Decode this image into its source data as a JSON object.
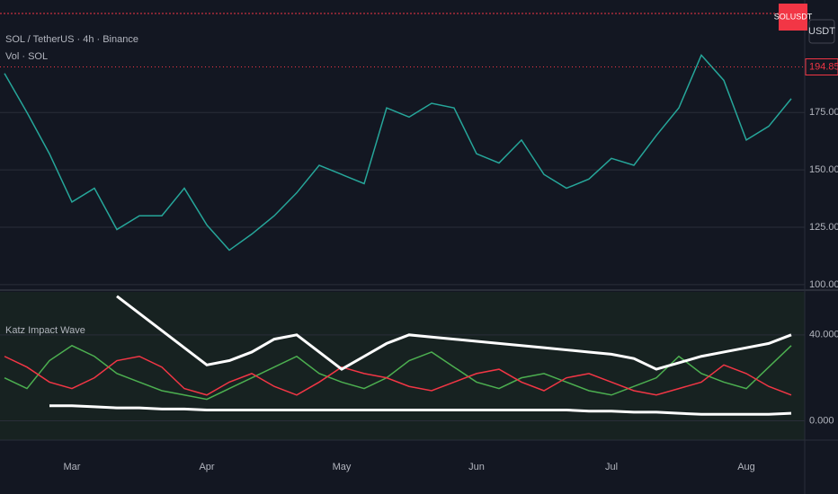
{
  "chart_data": [
    {
      "type": "line",
      "title": "SOL / TetherUS · 4h · Binance",
      "subtitle": "Vol · SOL",
      "symbol": "SOLUSDT",
      "currency": "USDT",
      "last_price": 194.85,
      "last_price_label": "194.85",
      "categories": [
        null,
        null,
        null,
        "Mar",
        null,
        null,
        null,
        null,
        null,
        "Apr",
        null,
        null,
        null,
        null,
        null,
        "May",
        null,
        null,
        null,
        null,
        null,
        "Jun",
        null,
        null,
        null,
        null,
        null,
        "Jul",
        null,
        null,
        null,
        null,
        null,
        "Aug",
        null,
        null
      ],
      "series": [
        {
          "color": "#26a69a",
          "values": [
            192,
            175,
            157,
            136,
            142,
            124,
            130,
            130,
            142,
            126,
            115,
            122,
            130,
            140,
            152,
            148,
            144,
            177,
            173,
            179,
            177,
            157,
            153,
            163,
            148,
            142,
            146,
            155,
            152,
            165,
            177,
            200,
            189,
            163,
            169,
            181
          ]
        }
      ],
      "ylim": [
        98,
        224
      ],
      "yticks": [
        {
          "value": 100,
          "label": "100.00"
        },
        {
          "value": 125,
          "label": "125.00"
        },
        {
          "value": 150,
          "label": "150.00"
        },
        {
          "value": 175,
          "label": "175.00"
        }
      ],
      "grid": true
    },
    {
      "type": "line",
      "title": "Katz Impact Wave",
      "series": [
        {
          "color": "#4caf50",
          "values": [
            20,
            15,
            28,
            35,
            30,
            22,
            18,
            14,
            12,
            10,
            15,
            20,
            25,
            30,
            22,
            18,
            15,
            20,
            28,
            32,
            25,
            18,
            15,
            20,
            22,
            18,
            14,
            12,
            16,
            20,
            30,
            22,
            18,
            15,
            25,
            35
          ]
        },
        {
          "color": "#f23645",
          "values": [
            30,
            25,
            18,
            15,
            20,
            28,
            30,
            25,
            15,
            12,
            18,
            22,
            16,
            12,
            18,
            25,
            22,
            20,
            16,
            14,
            18,
            22,
            24,
            18,
            14,
            20,
            22,
            18,
            14,
            12,
            15,
            18,
            26,
            22,
            16,
            12
          ]
        },
        {
          "color": "#ffffff",
          "values": [
            null,
            null,
            null,
            null,
            null,
            58,
            50,
            42,
            34,
            26,
            28,
            32,
            38,
            40,
            32,
            24,
            30,
            36,
            40,
            39,
            38,
            37,
            36,
            35,
            34,
            33,
            32,
            31,
            29,
            24,
            27,
            30,
            32,
            34,
            36,
            40
          ]
        },
        {
          "color": "#ffffff",
          "values": [
            null,
            null,
            7,
            7,
            6.5,
            6,
            6,
            5.5,
            5.5,
            5,
            5,
            5,
            5,
            5,
            5,
            5,
            5,
            5,
            5,
            5,
            5,
            5,
            5,
            5,
            5,
            5,
            4.5,
            4.5,
            4,
            4,
            3.5,
            3,
            3,
            3,
            3,
            3.5
          ]
        }
      ],
      "ylim": [
        -9,
        60
      ],
      "yticks": [
        {
          "value": 0,
          "label": "0.000"
        },
        {
          "value": 40,
          "label": "40.000"
        }
      ],
      "grid": true
    }
  ]
}
